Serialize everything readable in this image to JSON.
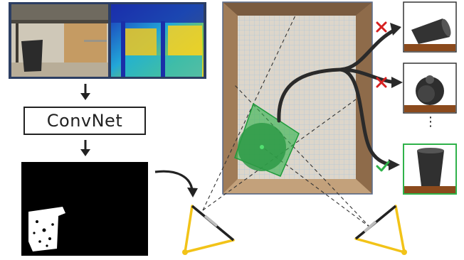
{
  "network": {
    "label": "ConvNet"
  },
  "outcomes": {
    "ellipsis": "⋮",
    "fail_mark": "✗",
    "success_mark": "✓",
    "fail_color": "#d62020",
    "success_color": "#2fb24a"
  },
  "colors": {
    "gripper": "#f2c318",
    "grasp_region": "#2fb24a",
    "bin_wall": "#8a6a4c",
    "bin_floor": "#d9d3c8",
    "grid": "#8fb4d8",
    "arrow": "#2a2a2a",
    "table": "#8b4a1c"
  },
  "icons": [
    "rgb-photo",
    "depth-map",
    "segmentation-mask",
    "cup-icon",
    "gripper-icon",
    "arrow-icon"
  ]
}
